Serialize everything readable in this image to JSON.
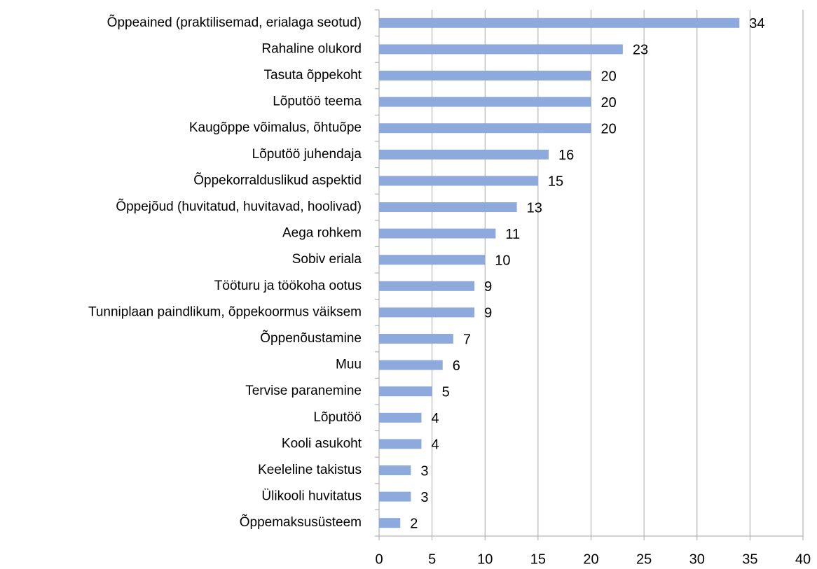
{
  "chart_data": {
    "type": "barh",
    "categories": [
      "Õppeained (praktilisemad, erialaga seotud)",
      "Rahaline olukord",
      "Tasuta õppekoht",
      "Lõputöö teema",
      "Kaugõppe võimalus, õhtuõpe",
      "Lõputöö juhendaja",
      "Õppekorralduslikud aspektid",
      "Õppejõud (huvitatud, huvitavad, hoolivad)",
      "Aega rohkem",
      "Sobiv eriala",
      "Tööturu ja töökoha ootus",
      "Tunniplaan paindlikum, õppekoormus väiksem",
      "Õppenõustamine",
      "Muu",
      "Tervise paranemine",
      "Lõputöö",
      "Kooli asukoht",
      "Keeleline takistus",
      "Ülikooli huvitatus",
      "Õppemaksusüsteem"
    ],
    "values": [
      34,
      23,
      20,
      20,
      20,
      16,
      15,
      13,
      11,
      10,
      9,
      9,
      7,
      6,
      5,
      4,
      4,
      3,
      3,
      2
    ],
    "color": "#8eaadc",
    "xlim": [
      0,
      40
    ],
    "xticks": [
      0,
      5,
      10,
      15,
      20,
      25,
      30,
      35,
      40
    ],
    "grid": true
  }
}
